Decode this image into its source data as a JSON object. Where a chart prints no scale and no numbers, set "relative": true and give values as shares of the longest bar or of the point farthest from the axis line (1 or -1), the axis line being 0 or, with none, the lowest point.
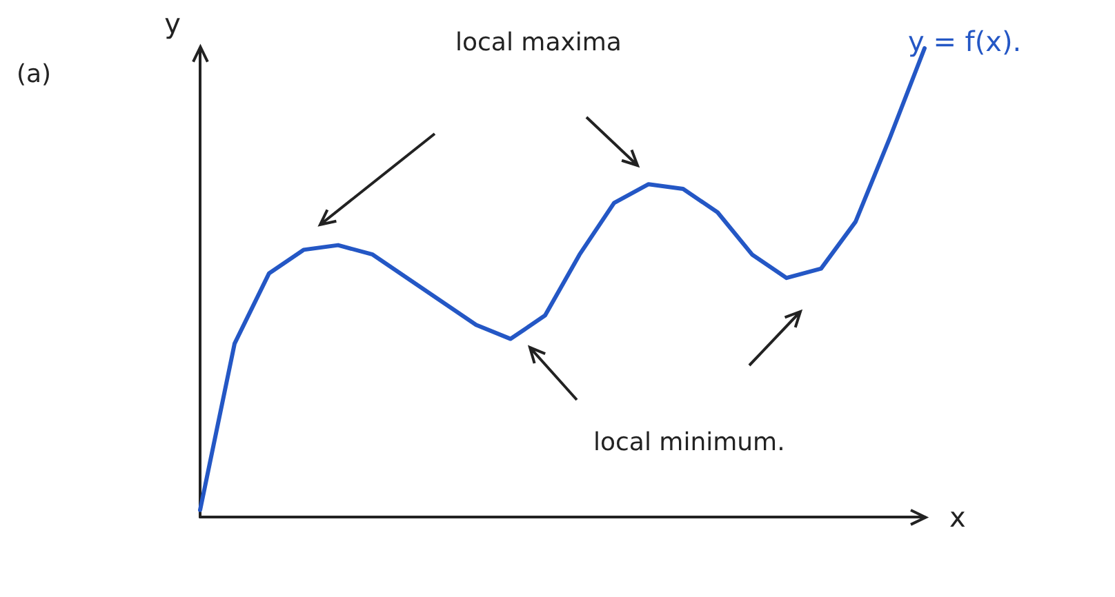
{
  "chart_data": {
    "type": "line",
    "relative": true,
    "xlabel": "x",
    "ylabel": "y",
    "categories": [
      null,
      null,
      null,
      null,
      null,
      null,
      null,
      null,
      null,
      null,
      null,
      null,
      null,
      null,
      null,
      null,
      null,
      null,
      null,
      null,
      null,
      null
    ],
    "series": [
      {
        "name": "y = f(x).",
        "color": "#2457c5",
        "values": [
          0.015,
          0.37,
          0.52,
          0.57,
          0.58,
          0.56,
          0.51,
          0.46,
          0.41,
          0.38,
          0.43,
          0.56,
          0.67,
          0.71,
          0.7,
          0.65,
          0.56,
          0.51,
          0.53,
          0.63,
          0.81,
          1.0
        ]
      }
    ],
    "annotations": [
      "(a)",
      "local maxima",
      "local minimum."
    ],
    "marker": "none",
    "grid": false,
    "legend": false
  }
}
